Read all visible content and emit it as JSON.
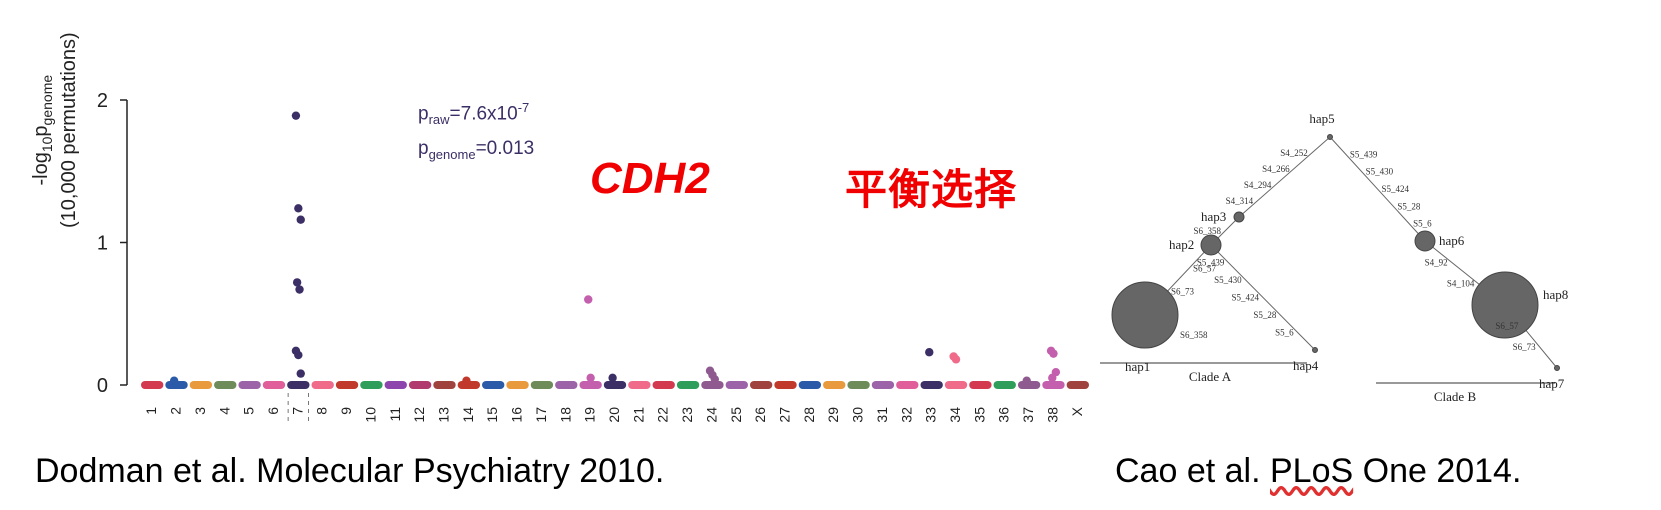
{
  "chart_data": [
    {
      "type": "scatter",
      "ylabel_line1": "-log10pgenome",
      "ylabel_parts": [
        "-log",
        "10",
        "p",
        "genome"
      ],
      "ylabel_line2": "(10,000 permutations)",
      "ylim": [
        0,
        2
      ],
      "yticks": [
        "0",
        "1",
        "2"
      ],
      "chromosomes": [
        "1",
        "2",
        "3",
        "4",
        "5",
        "6",
        "7",
        "8",
        "9",
        "10",
        "11",
        "12",
        "13",
        "14",
        "15",
        "16",
        "17",
        "18",
        "19",
        "20",
        "21",
        "22",
        "23",
        "24",
        "25",
        "26",
        "27",
        "28",
        "29",
        "30",
        "31",
        "32",
        "33",
        "34",
        "35",
        "36",
        "37",
        "38",
        "X"
      ],
      "chromosome_colors": [
        "#d33a4f",
        "#2a5aa8",
        "#e89a3c",
        "#6e8c5a",
        "#9c63a8",
        "#e05f9a",
        "#3b2f66",
        "#f06a8a",
        "#c0392b",
        "#2e9e5a",
        "#8e44ad",
        "#b03a6e",
        "#a0433f",
        "#c0392b",
        "#2a5aa8",
        "#e89a3c",
        "#6e8c5a",
        "#9c63a8",
        "#c45fae",
        "#3b2f66",
        "#f06a8a",
        "#d33a4f",
        "#2e9e5a",
        "#8e5a8f",
        "#9c63a8",
        "#a0433f",
        "#c0392b",
        "#2a5aa8",
        "#e89a3c",
        "#6e8c5a",
        "#9c63a8",
        "#e05f9a",
        "#3b2f66",
        "#f06a8a",
        "#d33a4f",
        "#2e9e5a",
        "#8e5a8f",
        "#c45fae",
        "#a0433f"
      ],
      "highlight_points": [
        {
          "chr": "7",
          "values": [
            1.89,
            1.24,
            1.16,
            0.72,
            0.67,
            0.24,
            0.21,
            0.08
          ]
        },
        {
          "chr": "2",
          "values": [
            0.03
          ]
        },
        {
          "chr": "14",
          "values": [
            0.03
          ]
        },
        {
          "chr": "19",
          "values": [
            0.6,
            0.05
          ]
        },
        {
          "chr": "20",
          "values": [
            0.05
          ]
        },
        {
          "chr": "24",
          "values": [
            0.1,
            0.07,
            0.04
          ]
        },
        {
          "chr": "33",
          "values": [
            0.23
          ]
        },
        {
          "chr": "34",
          "values": [
            0.2,
            0.18
          ]
        },
        {
          "chr": "37",
          "values": [
            0.03
          ]
        },
        {
          "chr": "38",
          "values": [
            0.24,
            0.22,
            0.09,
            0.05
          ]
        }
      ],
      "annotations": {
        "p_raw_base": "p",
        "p_raw_sub": "raw",
        "p_raw_val": "=7.6x10",
        "p_raw_exp": "-7",
        "p_genome_base": "p",
        "p_genome_sub": "genome",
        "p_genome_val": "=0.013"
      }
    },
    {
      "type": "diagram",
      "nodes": [
        {
          "id": "hap5",
          "label": "hap5",
          "size": "tiny"
        },
        {
          "id": "hap3",
          "label": "hap3",
          "size": "small"
        },
        {
          "id": "hap2",
          "label": "hap2",
          "size": "medium"
        },
        {
          "id": "hap1",
          "label": "hap1",
          "size": "large"
        },
        {
          "id": "hap4",
          "label": "hap4",
          "size": "tiny"
        },
        {
          "id": "hap6",
          "label": "hap6",
          "size": "medium"
        },
        {
          "id": "hap8",
          "label": "hap8",
          "size": "large"
        },
        {
          "id": "hap7",
          "label": "hap7",
          "size": "tiny"
        }
      ],
      "edge_labels": {
        "hap5_hap3": [
          "S4_252",
          "S4_266",
          "S4_294",
          "S4_314"
        ],
        "hap3_hap2": [
          "S6_358"
        ],
        "hap2_hap1": [
          "S6_57",
          "S6_73"
        ],
        "hap1_note": "S6_358",
        "hap2_hap4": [
          "S5_439",
          "S5_430",
          "S5_424",
          "S5_28",
          "S5_6"
        ],
        "hap5_hap6": [
          "S5_439",
          "S5_430",
          "S5_424",
          "S5_28",
          "S5_6"
        ],
        "hap6_hap8": [
          "S4_92",
          "S4_104"
        ],
        "hap8_hap7": [
          "S6_57",
          "S6_73"
        ]
      },
      "clades": [
        "Clade A",
        "Clade B"
      ]
    }
  ],
  "labels": {
    "gene": "CDH2",
    "chinese": "平衡选择",
    "cite_left": "Dodman et al. Molecular Psychiatry 2010.",
    "cite_right_pre": "Cao et al. ",
    "cite_right_plos": "PLoS",
    "cite_right_post": " One 2014."
  }
}
